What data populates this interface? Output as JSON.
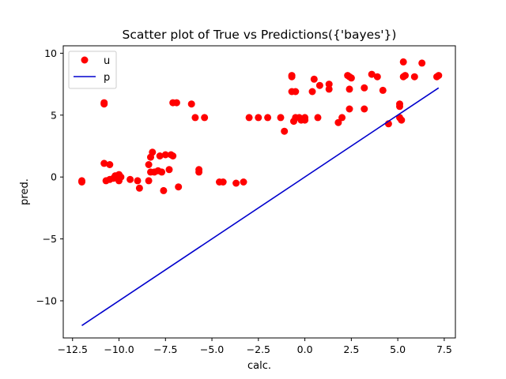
{
  "chart_data": {
    "type": "scatter",
    "title": "Scatter plot of True vs Predictions({'bayes'})",
    "xlabel": "calc.",
    "ylabel": "pred.",
    "xlim": [
      -13.0,
      8.1
    ],
    "ylim": [
      -13.0,
      10.6
    ],
    "xticks": [
      -12.5,
      -10.0,
      -7.5,
      -5.0,
      -2.5,
      0.0,
      2.5,
      5.0,
      7.5
    ],
    "xtick_labels": [
      "−12.5",
      "−10.0",
      "−7.5",
      "−5.0",
      "−2.5",
      "0.0",
      "2.5",
      "5.0",
      "7.5"
    ],
    "yticks": [
      -10,
      -5,
      0,
      5,
      10
    ],
    "ytick_labels": [
      "−10",
      "−5",
      "0",
      "5",
      "10"
    ],
    "grid": false,
    "legend_position": "upper-left",
    "series": [
      {
        "name": "u",
        "kind": "scatter",
        "color": "#ff0000",
        "points": [
          [
            -12.0,
            -0.3
          ],
          [
            -12.0,
            -0.4
          ],
          [
            -10.8,
            6.0
          ],
          [
            -10.8,
            5.9
          ],
          [
            -10.8,
            1.1
          ],
          [
            -10.5,
            1.0
          ],
          [
            -10.7,
            -0.3
          ],
          [
            -10.5,
            -0.2
          ],
          [
            -10.3,
            -0.1
          ],
          [
            -10.2,
            0.1
          ],
          [
            -10.0,
            0.2
          ],
          [
            -9.9,
            0.0
          ],
          [
            -10.0,
            -0.3
          ],
          [
            -9.4,
            -0.2
          ],
          [
            -9.0,
            -0.3
          ],
          [
            -8.9,
            -0.9
          ],
          [
            -8.4,
            -0.3
          ],
          [
            -8.4,
            1.0
          ],
          [
            -8.3,
            1.6
          ],
          [
            -8.2,
            2.0
          ],
          [
            -8.3,
            0.4
          ],
          [
            -8.1,
            0.4
          ],
          [
            -7.9,
            0.5
          ],
          [
            -7.7,
            0.4
          ],
          [
            -7.8,
            1.7
          ],
          [
            -7.5,
            1.8
          ],
          [
            -7.2,
            1.8
          ],
          [
            -7.1,
            1.7
          ],
          [
            -7.3,
            0.6
          ],
          [
            -7.6,
            -1.1
          ],
          [
            -6.8,
            -0.8
          ],
          [
            -7.1,
            6.0
          ],
          [
            -6.9,
            6.0
          ],
          [
            -6.1,
            5.9
          ],
          [
            -5.9,
            4.8
          ],
          [
            -5.4,
            4.8
          ],
          [
            -5.7,
            0.6
          ],
          [
            -5.7,
            0.4
          ],
          [
            -4.6,
            -0.4
          ],
          [
            -4.4,
            -0.4
          ],
          [
            -3.7,
            -0.5
          ],
          [
            -3.3,
            -0.4
          ],
          [
            -3.0,
            4.8
          ],
          [
            -2.5,
            4.8
          ],
          [
            -2.0,
            4.8
          ],
          [
            -1.3,
            4.8
          ],
          [
            -1.1,
            3.7
          ],
          [
            -0.7,
            8.1
          ],
          [
            -0.7,
            8.2
          ],
          [
            -0.7,
            6.9
          ],
          [
            -0.5,
            6.9
          ],
          [
            -0.6,
            4.5
          ],
          [
            -0.5,
            4.8
          ],
          [
            -0.3,
            4.8
          ],
          [
            -0.2,
            4.6
          ],
          [
            0.0,
            4.8
          ],
          [
            0.0,
            4.6
          ],
          [
            0.4,
            6.9
          ],
          [
            0.5,
            7.9
          ],
          [
            0.7,
            4.8
          ],
          [
            0.8,
            7.4
          ],
          [
            1.3,
            7.5
          ],
          [
            1.3,
            7.1
          ],
          [
            1.8,
            4.4
          ],
          [
            2.0,
            4.8
          ],
          [
            2.3,
            8.2
          ],
          [
            2.4,
            8.1
          ],
          [
            2.5,
            8.0
          ],
          [
            2.4,
            7.1
          ],
          [
            2.4,
            5.5
          ],
          [
            3.2,
            7.2
          ],
          [
            3.2,
            5.5
          ],
          [
            3.6,
            8.3
          ],
          [
            3.9,
            8.1
          ],
          [
            4.2,
            7.0
          ],
          [
            4.5,
            4.3
          ],
          [
            5.1,
            5.9
          ],
          [
            5.1,
            5.7
          ],
          [
            5.1,
            4.8
          ],
          [
            5.2,
            4.6
          ],
          [
            5.3,
            9.3
          ],
          [
            5.3,
            8.1
          ],
          [
            5.4,
            8.2
          ],
          [
            5.9,
            8.1
          ],
          [
            6.3,
            9.2
          ],
          [
            7.1,
            8.1
          ],
          [
            7.2,
            8.2
          ]
        ]
      },
      {
        "name": "p",
        "kind": "line",
        "color": "#0000cd",
        "points": [
          [
            -12.0,
            -12.0
          ],
          [
            7.2,
            7.2
          ]
        ]
      }
    ]
  }
}
